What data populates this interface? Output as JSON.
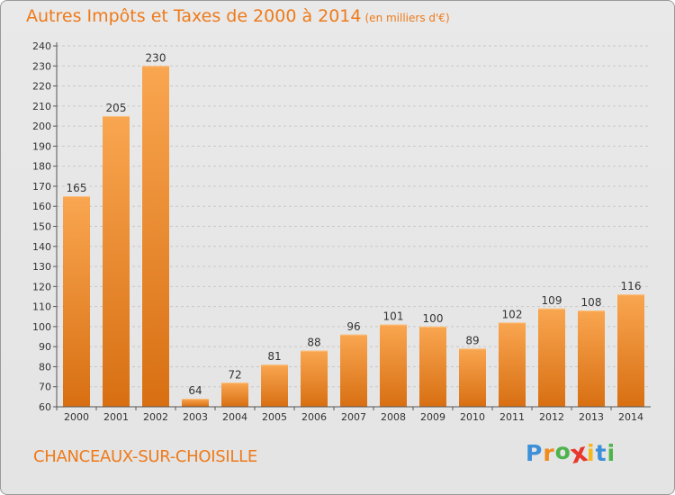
{
  "header": {
    "title": "Autres Impôts et Taxes de 2000 à 2014",
    "unit": "(en milliers d'€)"
  },
  "footer": {
    "city": "CHANCEAUX-SUR-CHOISILLE",
    "logo_letters": [
      "P",
      "r",
      "o",
      "x",
      "i",
      "t",
      "i"
    ],
    "logo_colors": [
      "#3c8fd8",
      "#f08a1c",
      "#4db34d",
      "#e8372c",
      "#f6b81a",
      "#3c8fd8",
      "#4db34d"
    ]
  },
  "colors": {
    "title": "#ee7a1a",
    "bar_light": "#f9a650",
    "bar_dark": "#d86f12",
    "grid": "#c8c8c8"
  },
  "chart_data": {
    "type": "bar",
    "title": "Autres Impôts et Taxes de 2000 à 2014",
    "subtitle": "(en milliers d'€)",
    "xlabel": "",
    "ylabel": "",
    "categories": [
      "2000",
      "2001",
      "2002",
      "2003",
      "2004",
      "2005",
      "2006",
      "2007",
      "2008",
      "2009",
      "2010",
      "2011",
      "2012",
      "2013",
      "2014"
    ],
    "values": [
      165,
      205,
      230,
      64,
      72,
      81,
      88,
      96,
      101,
      100,
      89,
      102,
      109,
      108,
      116
    ],
    "ylim": [
      60,
      240
    ],
    "yticks": [
      60,
      70,
      80,
      90,
      100,
      110,
      120,
      130,
      140,
      150,
      160,
      170,
      180,
      190,
      200,
      210,
      220,
      230,
      240
    ],
    "grid": "horizontal dashed",
    "legend": "none"
  }
}
